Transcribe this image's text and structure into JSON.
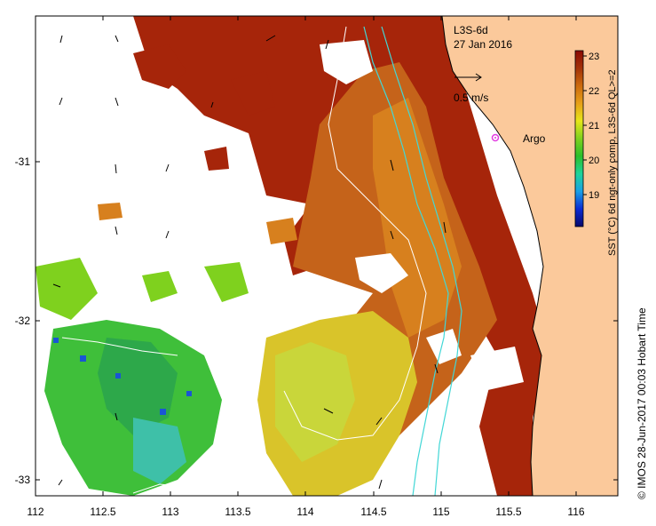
{
  "map": {
    "product_label": "L3S-6d",
    "date_label": "27 Jan 2016",
    "scale_arrow_label": "0.5 m/s",
    "argo_label": "Argo",
    "argo_position": {
      "lon": 115.35,
      "lat": -30.86
    },
    "credit": "© IMOS 28-Jun-2017 00:03 Hobart Time",
    "lon_range": [
      112,
      116.3
    ],
    "lat_range": [
      -33.1,
      -30.1
    ],
    "lon_ticks": [
      "112",
      "112.5",
      "113",
      "113.5",
      "114",
      "114.5",
      "115",
      "115.5",
      "116"
    ],
    "lat_ticks": [
      "-31",
      "-32",
      "-33"
    ],
    "colors": {
      "land": "#fbc99b",
      "coast": "#000000",
      "contour_cyan": "#42d7d6",
      "contour_white": "#ffffff",
      "argo": "#e23ce2"
    }
  },
  "colorbar": {
    "title": "SST (°C) 6d ngt-only comp, L3S-6d QL>=2",
    "ticks": [
      "23",
      "22",
      "21",
      "20",
      "19"
    ],
    "range": [
      18.2,
      23.2
    ],
    "stops": [
      "#08086b",
      "#0a2bd4",
      "#1aa0e6",
      "#1ed49a",
      "#2bbf2b",
      "#7fd11e",
      "#e6e619",
      "#e6a019",
      "#cc6b0d",
      "#a33308",
      "#8b0a03"
    ]
  }
}
